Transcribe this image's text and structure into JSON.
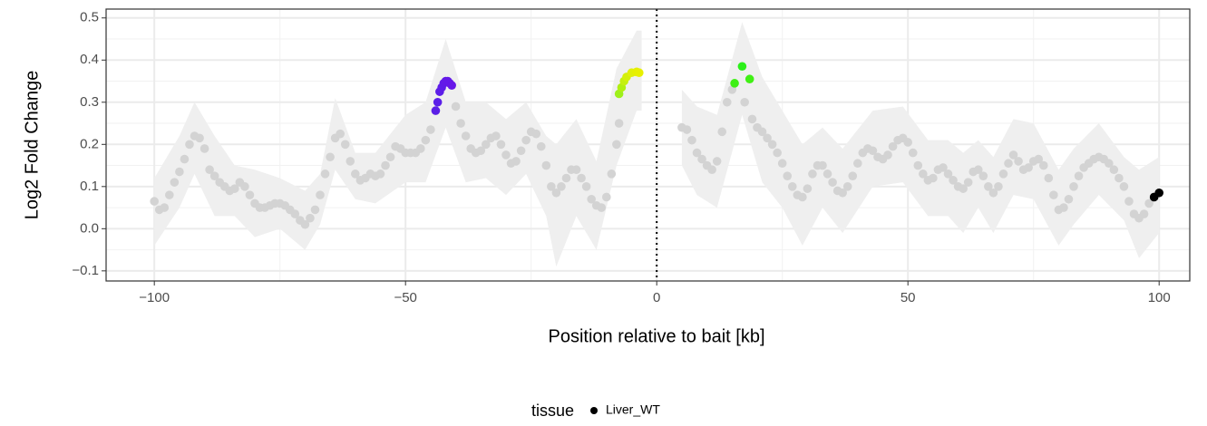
{
  "chart_data": {
    "type": "scatter",
    "x_label": "Position relative to bait [kb]",
    "y_label": "Log2 Fold Change",
    "xlim": [
      -109.6,
      106.1
    ],
    "ylim": [
      -0.124,
      0.521
    ],
    "xticks": [
      {
        "value": -100,
        "label": "−100"
      },
      {
        "value": -50,
        "label": "−50"
      },
      0,
      50,
      100
    ],
    "yticks": [
      {
        "value": -0.1,
        "label": "−0.1"
      },
      {
        "value": 0,
        "label": "0.0"
      },
      0.1,
      0.2,
      0.3,
      0.4,
      0.5
    ],
    "xminor": [
      -75,
      -25,
      25,
      75
    ],
    "yminor": [
      -0.05,
      0.05,
      0.15,
      0.25,
      0.35,
      0.45
    ],
    "grid": true,
    "vline": 0,
    "ribbon": {
      "color": "#efefef",
      "x": [
        -100,
        -95,
        -92,
        -88,
        -84,
        -80,
        -75,
        -70,
        -67,
        -64,
        -60,
        -56,
        -50,
        -46,
        -42,
        -38,
        -34,
        -30,
        -26,
        -22,
        -20,
        -16,
        -12,
        -8,
        -4,
        -3,
        null,
        5,
        8,
        12,
        17,
        21,
        25,
        29,
        33,
        37,
        43,
        49,
        54,
        58,
        61,
        64,
        67,
        71,
        75,
        80,
        83,
        88,
        93,
        96,
        100
      ],
      "upper": [
        0.12,
        0.22,
        0.3,
        0.22,
        0.15,
        0.14,
        0.12,
        0.09,
        0.13,
        0.31,
        0.18,
        0.18,
        0.27,
        0.3,
        0.45,
        0.3,
        0.3,
        0.26,
        0.3,
        0.22,
        0.2,
        0.26,
        0.16,
        0.38,
        0.47,
        0.47,
        null,
        0.33,
        0.29,
        0.27,
        0.49,
        0.36,
        0.28,
        0.2,
        0.24,
        0.19,
        0.28,
        0.29,
        0.21,
        0.21,
        0.18,
        0.21,
        0.17,
        0.26,
        0.25,
        0.14,
        0.19,
        0.25,
        0.17,
        0.14,
        0.17
      ],
      "lower": [
        -0.04,
        0.05,
        0.13,
        0.03,
        0.03,
        -0.02,
        0,
        -0.05,
        0.01,
        0.14,
        0.07,
        0.06,
        0.11,
        0.11,
        0.24,
        0.11,
        0.12,
        0.08,
        0.13,
        0.03,
        -0.09,
        0.03,
        -0.05,
        0.15,
        0.28,
        0.28,
        null,
        0.15,
        0.08,
        0.05,
        0.27,
        0.11,
        0.05,
        -0.04,
        0.05,
        -0.01,
        0.1,
        0.11,
        0.03,
        0.03,
        -0.01,
        0.05,
        -0.01,
        0.08,
        0.07,
        -0.04,
        0.01,
        0.08,
        0.02,
        -0.07,
        -0.01
      ]
    },
    "legend": {
      "title": "tissue",
      "marker_color": "#000000"
    },
    "series": [
      {
        "name": "Liver_WT",
        "x": [
          -100,
          -99,
          -98,
          -97,
          -96,
          -95,
          -94,
          -93,
          -92,
          -91,
          -90,
          -89,
          -88,
          -87,
          -86,
          -85,
          -84,
          -83,
          -82,
          -81,
          -80,
          -79,
          -78,
          -77,
          -76,
          -75,
          -74,
          -73,
          -72,
          -71,
          -70,
          -69,
          -68,
          -67,
          -66,
          -65,
          -64,
          -63,
          -62,
          -61,
          -60,
          -59,
          -58,
          -57,
          -56,
          -55,
          -54,
          -53,
          -52,
          -51,
          -50,
          -49,
          -48,
          -47,
          -46,
          -45,
          -44,
          -43.6,
          -43.2,
          -42.8,
          -42.4,
          -42,
          -41.6,
          -41.2,
          -40.8,
          -40,
          -39,
          -38,
          -37,
          -36,
          -35,
          -34,
          -33,
          -32,
          -31,
          -30,
          -29,
          -28,
          -27,
          -26,
          -25,
          -24,
          -23,
          -22,
          -21,
          -20,
          -19,
          -18,
          -17,
          -16,
          -15,
          -14,
          -13,
          -12,
          -11,
          -10,
          -9,
          -8,
          -7.5,
          -7.5,
          -7,
          -6.5,
          -6,
          -5,
          -4,
          -3.5,
          5,
          6,
          7,
          8,
          9,
          10,
          11,
          12,
          13,
          14,
          15,
          15.5,
          17,
          17.5,
          18.5,
          19,
          20,
          21,
          22,
          23,
          24,
          25,
          26,
          27,
          28,
          29,
          30,
          31,
          32,
          33,
          34,
          35,
          36,
          37,
          38,
          39,
          40,
          41,
          42,
          43,
          44,
          45,
          46,
          47,
          48,
          49,
          50,
          51,
          52,
          53,
          54,
          55,
          56,
          57,
          58,
          59,
          60,
          61,
          62,
          63,
          64,
          65,
          66,
          67,
          68,
          69,
          70,
          71,
          72,
          73,
          74,
          75,
          76,
          77,
          78,
          79,
          80,
          81,
          82,
          83,
          84,
          85,
          86,
          87,
          88,
          89,
          90,
          91,
          92,
          93,
          94,
          95,
          96,
          97,
          98,
          99,
          100
        ],
        "values": [
          0.065,
          0.045,
          0.05,
          0.08,
          0.11,
          0.135,
          0.165,
          0.2,
          0.22,
          0.215,
          0.19,
          0.14,
          0.125,
          0.11,
          0.1,
          0.09,
          0.095,
          0.11,
          0.1,
          0.08,
          0.06,
          0.05,
          0.05,
          0.055,
          0.06,
          0.06,
          0.055,
          0.045,
          0.035,
          0.02,
          0.01,
          0.025,
          0.045,
          0.08,
          0.13,
          0.17,
          0.215,
          0.225,
          0.2,
          0.16,
          0.13,
          0.115,
          0.12,
          0.13,
          0.125,
          0.13,
          0.15,
          0.17,
          0.195,
          0.19,
          0.18,
          0.18,
          0.18,
          0.19,
          0.21,
          0.235,
          0.28,
          0.3,
          0.325,
          0.335,
          0.345,
          0.35,
          0.35,
          0.345,
          0.34,
          0.29,
          0.25,
          0.22,
          0.19,
          0.18,
          0.185,
          0.2,
          0.215,
          0.22,
          0.2,
          0.175,
          0.155,
          0.16,
          0.185,
          0.21,
          0.23,
          0.225,
          0.195,
          0.15,
          0.1,
          0.085,
          0.1,
          0.12,
          0.14,
          0.14,
          0.12,
          0.1,
          0.07,
          0.055,
          0.05,
          0.075,
          0.13,
          0.2,
          0.25,
          0.32,
          0.335,
          0.35,
          0.36,
          0.37,
          0.372,
          0.37,
          0.24,
          0.235,
          0.21,
          0.18,
          0.165,
          0.15,
          0.14,
          0.16,
          0.23,
          0.3,
          0.33,
          0.345,
          0.385,
          0.3,
          0.355,
          0.26,
          0.24,
          0.23,
          0.215,
          0.2,
          0.18,
          0.155,
          0.125,
          0.1,
          0.08,
          0.075,
          0.095,
          0.13,
          0.15,
          0.15,
          0.13,
          0.11,
          0.09,
          0.085,
          0.1,
          0.125,
          0.155,
          0.18,
          0.19,
          0.185,
          0.17,
          0.165,
          0.175,
          0.195,
          0.21,
          0.215,
          0.205,
          0.18,
          0.15,
          0.13,
          0.115,
          0.12,
          0.14,
          0.145,
          0.13,
          0.115,
          0.1,
          0.095,
          0.11,
          0.135,
          0.14,
          0.125,
          0.1,
          0.085,
          0.1,
          0.13,
          0.155,
          0.175,
          0.16,
          0.14,
          0.145,
          0.16,
          0.165,
          0.15,
          0.12,
          0.08,
          0.045,
          0.05,
          0.07,
          0.1,
          0.125,
          0.145,
          0.155,
          0.165,
          0.17,
          0.165,
          0.155,
          0.14,
          0.12,
          0.1,
          0.065,
          0.035,
          0.025,
          0.035,
          0.06,
          0.075,
          0.085
        ],
        "colors": [
          "#d3d3d3",
          "#d3d3d3",
          "#d3d3d3",
          "#d3d3d3",
          "#d3d3d3",
          "#d3d3d3",
          "#d3d3d3",
          "#d3d3d3",
          "#d3d3d3",
          "#d3d3d3",
          "#d3d3d3",
          "#d3d3d3",
          "#d3d3d3",
          "#d3d3d3",
          "#d3d3d3",
          "#d3d3d3",
          "#d3d3d3",
          "#d3d3d3",
          "#d3d3d3",
          "#d3d3d3",
          "#d3d3d3",
          "#d3d3d3",
          "#d3d3d3",
          "#d3d3d3",
          "#d3d3d3",
          "#d3d3d3",
          "#d3d3d3",
          "#d3d3d3",
          "#d3d3d3",
          "#d3d3d3",
          "#d3d3d3",
          "#d3d3d3",
          "#d3d3d3",
          "#d3d3d3",
          "#d3d3d3",
          "#d3d3d3",
          "#d3d3d3",
          "#d3d3d3",
          "#d3d3d3",
          "#d3d3d3",
          "#d3d3d3",
          "#d3d3d3",
          "#d3d3d3",
          "#d3d3d3",
          "#d3d3d3",
          "#d3d3d3",
          "#d3d3d3",
          "#d3d3d3",
          "#d3d3d3",
          "#d3d3d3",
          "#d3d3d3",
          "#d3d3d3",
          "#d3d3d3",
          "#d3d3d3",
          "#d3d3d3",
          "#d3d3d3",
          "#5b1fe6",
          "#5a1ee8",
          "#5c1de8",
          "#5e1ce8",
          "#601ae8",
          "#621ae8",
          "#6418e8",
          "#6418e8",
          "#6616e8",
          "#d3d3d3",
          "#d3d3d3",
          "#d3d3d3",
          "#d3d3d3",
          "#d3d3d3",
          "#d3d3d3",
          "#d3d3d3",
          "#d3d3d3",
          "#d3d3d3",
          "#d3d3d3",
          "#d3d3d3",
          "#d3d3d3",
          "#d3d3d3",
          "#d3d3d3",
          "#d3d3d3",
          "#d3d3d3",
          "#d3d3d3",
          "#d3d3d3",
          "#d3d3d3",
          "#d3d3d3",
          "#d3d3d3",
          "#d3d3d3",
          "#d3d3d3",
          "#d3d3d3",
          "#d3d3d3",
          "#d3d3d3",
          "#d3d3d3",
          "#d3d3d3",
          "#d3d3d3",
          "#d3d3d3",
          "#d3d3d3",
          "#d3d3d3",
          "#d3d3d3",
          "#d3d3d3",
          "#9ef01a",
          "#b0f012",
          "#c4f010",
          "#d4f00a",
          "#e0f008",
          "#e6f000",
          "#e8f000",
          "#d3d3d3",
          "#d3d3d3",
          "#d3d3d3",
          "#d3d3d3",
          "#d3d3d3",
          "#d3d3d3",
          "#d3d3d3",
          "#d3d3d3",
          "#d3d3d3",
          "#d3d3d3",
          "#d3d3d3",
          "#3ef014",
          "#2cf01a",
          "#d3d3d3",
          "#40f014",
          "#d3d3d3",
          "#d3d3d3",
          "#d3d3d3",
          "#d3d3d3",
          "#d3d3d3",
          "#d3d3d3",
          "#d3d3d3",
          "#d3d3d3",
          "#d3d3d3",
          "#d3d3d3",
          "#d3d3d3",
          "#d3d3d3",
          "#d3d3d3",
          "#d3d3d3",
          "#d3d3d3",
          "#d3d3d3",
          "#d3d3d3",
          "#d3d3d3",
          "#d3d3d3",
          "#d3d3d3",
          "#d3d3d3",
          "#d3d3d3",
          "#d3d3d3",
          "#d3d3d3",
          "#d3d3d3",
          "#d3d3d3",
          "#d3d3d3",
          "#d3d3d3",
          "#d3d3d3",
          "#d3d3d3",
          "#d3d3d3",
          "#d3d3d3",
          "#d3d3d3",
          "#d3d3d3",
          "#d3d3d3",
          "#d3d3d3",
          "#d3d3d3",
          "#d3d3d3",
          "#d3d3d3",
          "#d3d3d3",
          "#d3d3d3",
          "#d3d3d3",
          "#d3d3d3",
          "#d3d3d3",
          "#d3d3d3",
          "#d3d3d3",
          "#d3d3d3",
          "#d3d3d3",
          "#d3d3d3",
          "#d3d3d3",
          "#d3d3d3",
          "#d3d3d3",
          "#d3d3d3",
          "#d3d3d3",
          "#d3d3d3",
          "#d3d3d3",
          "#d3d3d3",
          "#d3d3d3",
          "#d3d3d3",
          "#d3d3d3",
          "#d3d3d3",
          "#d3d3d3",
          "#d3d3d3",
          "#d3d3d3",
          "#d3d3d3",
          "#d3d3d3",
          "#d3d3d3",
          "#d3d3d3",
          "#d3d3d3",
          "#d3d3d3",
          "#d3d3d3",
          "#d3d3d3",
          "#d3d3d3",
          "#d3d3d3",
          "#d3d3d3",
          "#d3d3d3",
          "#d3d3d3",
          "#d3d3d3",
          "#d3d3d3",
          "#d3d3d3"
        ]
      }
    ]
  }
}
